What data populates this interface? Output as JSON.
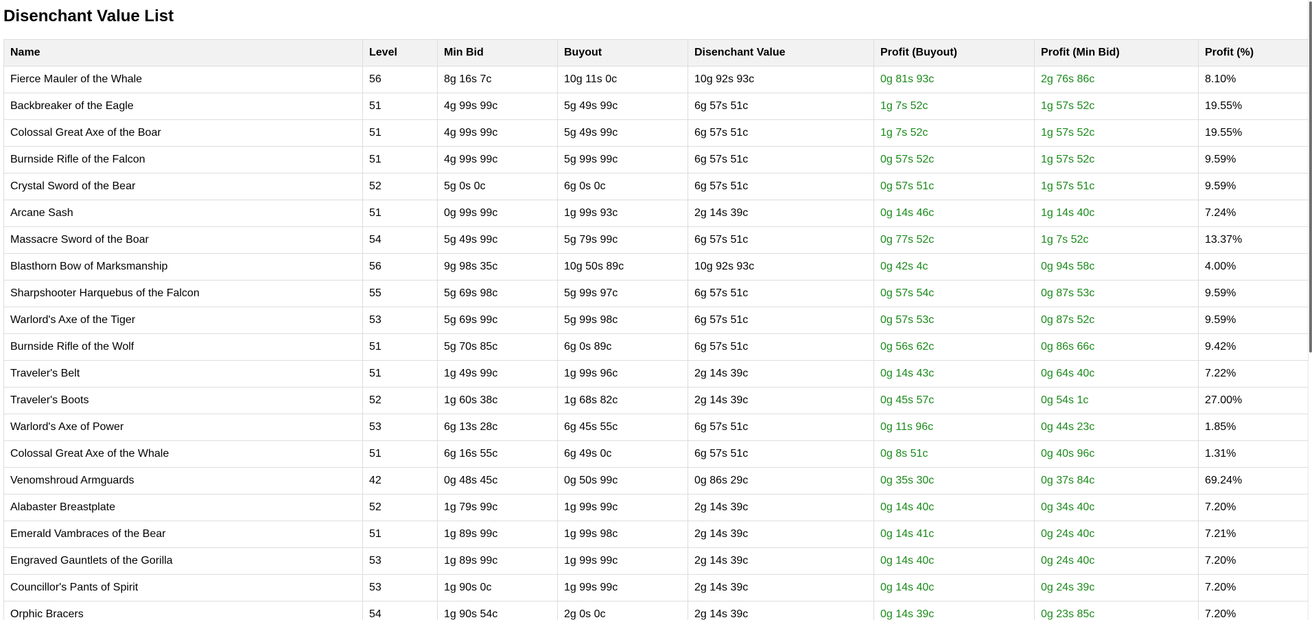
{
  "page": {
    "title": "Disenchant Value List"
  },
  "table": {
    "headers": [
      "Name",
      "Level",
      "Min Bid",
      "Buyout",
      "Disenchant Value",
      "Profit (Buyout)",
      "Profit (Min Bid)",
      "Profit (%)"
    ],
    "rows": [
      [
        "Fierce Mauler of the Whale",
        "56",
        "8g 16s 7c",
        "10g 11s 0c",
        "10g 92s 93c",
        "0g 81s 93c",
        "2g 76s 86c",
        "8.10%"
      ],
      [
        "Backbreaker of the Eagle",
        "51",
        "4g 99s 99c",
        "5g 49s 99c",
        "6g 57s 51c",
        "1g 7s 52c",
        "1g 57s 52c",
        "19.55%"
      ],
      [
        "Colossal Great Axe of the Boar",
        "51",
        "4g 99s 99c",
        "5g 49s 99c",
        "6g 57s 51c",
        "1g 7s 52c",
        "1g 57s 52c",
        "19.55%"
      ],
      [
        "Burnside Rifle of the Falcon",
        "51",
        "4g 99s 99c",
        "5g 99s 99c",
        "6g 57s 51c",
        "0g 57s 52c",
        "1g 57s 52c",
        "9.59%"
      ],
      [
        "Crystal Sword of the Bear",
        "52",
        "5g 0s 0c",
        "6g 0s 0c",
        "6g 57s 51c",
        "0g 57s 51c",
        "1g 57s 51c",
        "9.59%"
      ],
      [
        "Arcane Sash",
        "51",
        "0g 99s 99c",
        "1g 99s 93c",
        "2g 14s 39c",
        "0g 14s 46c",
        "1g 14s 40c",
        "7.24%"
      ],
      [
        "Massacre Sword of the Boar",
        "54",
        "5g 49s 99c",
        "5g 79s 99c",
        "6g 57s 51c",
        "0g 77s 52c",
        "1g 7s 52c",
        "13.37%"
      ],
      [
        "Blasthorn Bow of Marksmanship",
        "56",
        "9g 98s 35c",
        "10g 50s 89c",
        "10g 92s 93c",
        "0g 42s 4c",
        "0g 94s 58c",
        "4.00%"
      ],
      [
        "Sharpshooter Harquebus of the Falcon",
        "55",
        "5g 69s 98c",
        "5g 99s 97c",
        "6g 57s 51c",
        "0g 57s 54c",
        "0g 87s 53c",
        "9.59%"
      ],
      [
        "Warlord's Axe of the Tiger",
        "53",
        "5g 69s 99c",
        "5g 99s 98c",
        "6g 57s 51c",
        "0g 57s 53c",
        "0g 87s 52c",
        "9.59%"
      ],
      [
        "Burnside Rifle of the Wolf",
        "51",
        "5g 70s 85c",
        "6g 0s 89c",
        "6g 57s 51c",
        "0g 56s 62c",
        "0g 86s 66c",
        "9.42%"
      ],
      [
        "Traveler's Belt",
        "51",
        "1g 49s 99c",
        "1g 99s 96c",
        "2g 14s 39c",
        "0g 14s 43c",
        "0g 64s 40c",
        "7.22%"
      ],
      [
        "Traveler's Boots",
        "52",
        "1g 60s 38c",
        "1g 68s 82c",
        "2g 14s 39c",
        "0g 45s 57c",
        "0g 54s 1c",
        "27.00%"
      ],
      [
        "Warlord's Axe of Power",
        "53",
        "6g 13s 28c",
        "6g 45s 55c",
        "6g 57s 51c",
        "0g 11s 96c",
        "0g 44s 23c",
        "1.85%"
      ],
      [
        "Colossal Great Axe of the Whale",
        "51",
        "6g 16s 55c",
        "6g 49s 0c",
        "6g 57s 51c",
        "0g 8s 51c",
        "0g 40s 96c",
        "1.31%"
      ],
      [
        "Venomshroud Armguards",
        "42",
        "0g 48s 45c",
        "0g 50s 99c",
        "0g 86s 29c",
        "0g 35s 30c",
        "0g 37s 84c",
        "69.24%"
      ],
      [
        "Alabaster Breastplate",
        "52",
        "1g 79s 99c",
        "1g 99s 99c",
        "2g 14s 39c",
        "0g 14s 40c",
        "0g 34s 40c",
        "7.20%"
      ],
      [
        "Emerald Vambraces of the Bear",
        "51",
        "1g 89s 99c",
        "1g 99s 98c",
        "2g 14s 39c",
        "0g 14s 41c",
        "0g 24s 40c",
        "7.21%"
      ],
      [
        "Engraved Gauntlets of the Gorilla",
        "53",
        "1g 89s 99c",
        "1g 99s 99c",
        "2g 14s 39c",
        "0g 14s 40c",
        "0g 24s 40c",
        "7.20%"
      ],
      [
        "Councillor's Pants of Spirit",
        "53",
        "1g 90s 0c",
        "1g 99s 99c",
        "2g 14s 39c",
        "0g 14s 40c",
        "0g 24s 39c",
        "7.20%"
      ],
      [
        "Orphic Bracers",
        "54",
        "1g 90s 54c",
        "2g 0s 0c",
        "2g 14s 39c",
        "0g 14s 39c",
        "0g 23s 85c",
        "7.20%"
      ]
    ]
  },
  "colors": {
    "profit_text": "#1a8a1a",
    "header_bg": "#f2f2f2",
    "border": "#dddddd"
  }
}
